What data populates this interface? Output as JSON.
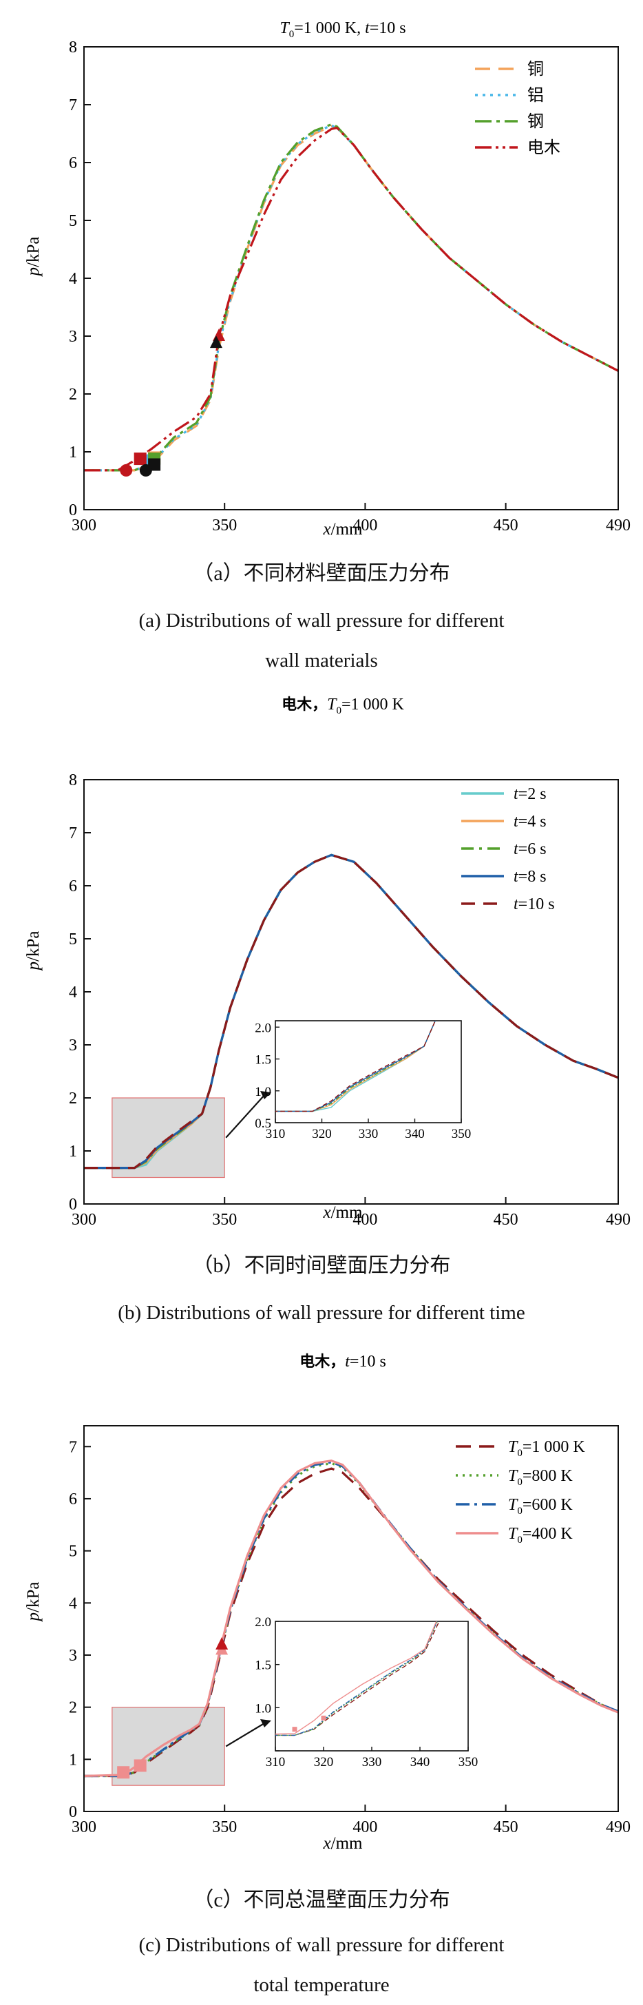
{
  "colors": {
    "copper": "#F4A35A",
    "aluminum": "#49B7E8",
    "steel": "#54A02C",
    "bakelite": "#C0161C",
    "t2": "#66CCCC",
    "t4": "#F4A35A",
    "t6": "#54A02C",
    "t8": "#1F5FA8",
    "t10": "#8B1A1A",
    "T1000": "#8B1A1A",
    "T800": "#54A02C",
    "T600": "#1F5FA8",
    "T400": "#EE8D8D",
    "shade": "#D9D9D9",
    "shade_border": "#E07070"
  },
  "figure": {
    "cap_a_cn": "（a）不同材料壁面压力分布",
    "cap_a_en_1": "(a) Distributions of wall pressure for different",
    "cap_a_en_2": "wall materials",
    "cap_b_cn": "（b）不同时间壁面压力分布",
    "cap_b_en": "(b) Distributions of wall pressure for different time",
    "cap_c_cn": "（c）不同总温壁面压力分布",
    "cap_c_en_1": "(c) Distributions of wall pressure for different",
    "cap_c_en_2": "total temperature"
  },
  "chart_data": [
    {
      "id": "a",
      "type": "line",
      "title": "T0=1 000 K, t=10 s",
      "xlabel": "x/mm",
      "ylabel": "p/kPa",
      "xlim": [
        300,
        490
      ],
      "ylim": [
        0,
        8
      ],
      "xticks": [
        300,
        350,
        400,
        450,
        490
      ],
      "yticks": [
        0,
        1,
        2,
        3,
        4,
        5,
        6,
        7,
        8
      ],
      "legend": "top-right",
      "series": [
        {
          "name": "铜",
          "color_key": "copper",
          "dash": "22,12",
          "x": [
            300,
            318,
            324,
            332,
            340,
            345,
            348,
            352,
            358,
            364,
            370,
            376,
            382,
            388,
            390,
            396,
            402,
            410,
            420,
            430,
            440,
            450,
            460,
            470,
            480,
            490
          ],
          "y": [
            0.68,
            0.68,
            0.78,
            1.2,
            1.45,
            1.9,
            2.8,
            3.6,
            4.5,
            5.3,
            5.95,
            6.3,
            6.5,
            6.63,
            6.6,
            6.3,
            5.9,
            5.4,
            4.85,
            4.35,
            3.95,
            3.55,
            3.2,
            2.9,
            2.65,
            2.4
          ]
        },
        {
          "name": "铝",
          "color_key": "aluminum",
          "dash": "4,7",
          "x": [
            300,
            318,
            324,
            332,
            340,
            345,
            348,
            352,
            358,
            364,
            370,
            376,
            382,
            388,
            390,
            396,
            402,
            410,
            420,
            430,
            440,
            450,
            460,
            470,
            480,
            490
          ],
          "y": [
            0.68,
            0.68,
            0.8,
            1.22,
            1.46,
            1.92,
            2.85,
            3.62,
            4.52,
            5.32,
            5.97,
            6.32,
            6.52,
            6.64,
            6.6,
            6.3,
            5.9,
            5.4,
            4.85,
            4.35,
            3.95,
            3.55,
            3.2,
            2.9,
            2.65,
            2.4
          ]
        },
        {
          "name": "钢",
          "color_key": "steel",
          "dash": "24,7,5,7",
          "x": [
            300,
            318,
            324,
            332,
            340,
            345,
            348,
            352,
            358,
            364,
            370,
            376,
            382,
            388,
            390,
            396,
            402,
            410,
            420,
            430,
            440,
            450,
            460,
            470,
            480,
            490
          ],
          "y": [
            0.68,
            0.68,
            0.82,
            1.25,
            1.5,
            1.95,
            2.9,
            3.7,
            4.55,
            5.35,
            6.0,
            6.35,
            6.55,
            6.66,
            6.62,
            6.3,
            5.9,
            5.4,
            4.85,
            4.35,
            3.95,
            3.55,
            3.2,
            2.9,
            2.65,
            2.4
          ]
        },
        {
          "name": "电木",
          "color_key": "bakelite",
          "dash": "24,6,4,6,4,6",
          "x": [
            300,
            312,
            318,
            324,
            332,
            340,
            345,
            348,
            352,
            358,
            364,
            370,
            376,
            382,
            388,
            390,
            396,
            402,
            410,
            420,
            430,
            440,
            450,
            460,
            470,
            480,
            490
          ],
          "y": [
            0.68,
            0.68,
            0.85,
            1.05,
            1.35,
            1.6,
            2.0,
            3.0,
            3.7,
            4.4,
            5.1,
            5.7,
            6.1,
            6.38,
            6.58,
            6.6,
            6.3,
            5.9,
            5.4,
            4.85,
            4.35,
            3.95,
            3.55,
            3.2,
            2.9,
            2.65,
            2.4
          ]
        }
      ],
      "markers": [
        {
          "shape": "square",
          "color_key": "copper",
          "x": 325,
          "y": 0.9
        },
        {
          "shape": "square",
          "color_key": "aluminum",
          "x": 324,
          "y": 0.85
        },
        {
          "shape": "square",
          "color_key": "steel",
          "x": 325,
          "y": 0.88
        },
        {
          "shape": "square",
          "color_key": "bakelite",
          "x": 320,
          "y": 0.88
        },
        {
          "shape": "square",
          "color": "#111111",
          "x": 325,
          "y": 0.78
        },
        {
          "shape": "circle",
          "color_key": "bakelite",
          "x": 315,
          "y": 0.68
        },
        {
          "shape": "circle",
          "color": "#111111",
          "x": 322,
          "y": 0.68
        },
        {
          "shape": "triangle",
          "color_key": "bakelite",
          "x": 348,
          "y": 3.0
        },
        {
          "shape": "triangle",
          "color": "#111111",
          "x": 347,
          "y": 2.88
        }
      ]
    },
    {
      "id": "b",
      "type": "line",
      "title": "电木，T0=1 000 K",
      "xlabel": "x/mm",
      "ylabel": "p/kPa",
      "xlim": [
        300,
        490
      ],
      "ylim": [
        0,
        8
      ],
      "xticks": [
        300,
        350,
        400,
        450,
        490
      ],
      "yticks": [
        0,
        1,
        2,
        3,
        4,
        5,
        6,
        7,
        8
      ],
      "legend": "top-right",
      "series": [
        {
          "name": "t=2 s",
          "color_key": "t2",
          "dash": "",
          "x": [
            300,
            318,
            322,
            326,
            332,
            338,
            342,
            345,
            348,
            352,
            358,
            364,
            370,
            376,
            382,
            388,
            396,
            404,
            414,
            424,
            434,
            444,
            454,
            464,
            474,
            482,
            490
          ],
          "y": [
            0.68,
            0.68,
            0.74,
            1.0,
            1.25,
            1.5,
            1.7,
            2.2,
            2.9,
            3.7,
            4.6,
            5.35,
            5.92,
            6.25,
            6.45,
            6.58,
            6.45,
            6.05,
            5.45,
            4.85,
            4.3,
            3.8,
            3.35,
            3.0,
            2.7,
            2.55,
            2.38
          ]
        },
        {
          "name": "t=4 s",
          "color_key": "t4",
          "dash": "",
          "x": [
            300,
            318,
            322,
            326,
            332,
            338,
            342,
            345,
            348,
            352,
            358,
            364,
            370,
            376,
            382,
            388,
            396,
            404,
            414,
            424,
            434,
            444,
            454,
            464,
            474,
            482,
            490
          ],
          "y": [
            0.68,
            0.68,
            0.78,
            1.02,
            1.27,
            1.5,
            1.7,
            2.2,
            2.9,
            3.7,
            4.6,
            5.35,
            5.92,
            6.25,
            6.45,
            6.58,
            6.45,
            6.05,
            5.45,
            4.85,
            4.3,
            3.8,
            3.35,
            3.0,
            2.7,
            2.55,
            2.38
          ]
        },
        {
          "name": "t=6 s",
          "color_key": "t6",
          "dash": "18,8,4,8",
          "x": [
            300,
            318,
            322,
            326,
            332,
            338,
            342,
            345,
            348,
            352,
            358,
            364,
            370,
            376,
            382,
            388,
            396,
            404,
            414,
            424,
            434,
            444,
            454,
            464,
            474,
            482,
            490
          ],
          "y": [
            0.68,
            0.68,
            0.8,
            1.04,
            1.28,
            1.52,
            1.7,
            2.2,
            2.9,
            3.7,
            4.6,
            5.35,
            5.92,
            6.25,
            6.45,
            6.58,
            6.45,
            6.05,
            5.45,
            4.85,
            4.3,
            3.8,
            3.35,
            3.0,
            2.7,
            2.55,
            2.38
          ]
        },
        {
          "name": "t=8 s",
          "color_key": "t8",
          "dash": "",
          "x": [
            300,
            318,
            322,
            326,
            332,
            338,
            342,
            345,
            348,
            352,
            358,
            364,
            370,
            376,
            382,
            388,
            396,
            404,
            414,
            424,
            434,
            444,
            454,
            464,
            474,
            482,
            490
          ],
          "y": [
            0.68,
            0.68,
            0.82,
            1.06,
            1.3,
            1.53,
            1.7,
            2.2,
            2.9,
            3.7,
            4.6,
            5.35,
            5.92,
            6.25,
            6.45,
            6.58,
            6.45,
            6.05,
            5.45,
            4.85,
            4.3,
            3.8,
            3.35,
            3.0,
            2.7,
            2.55,
            2.38
          ]
        },
        {
          "name": "t=10 s",
          "color_key": "t10",
          "dash": "20,12",
          "x": [
            300,
            318,
            322,
            326,
            332,
            338,
            342,
            345,
            348,
            352,
            358,
            364,
            370,
            376,
            382,
            388,
            396,
            404,
            414,
            424,
            434,
            444,
            454,
            464,
            474,
            482,
            490
          ],
          "y": [
            0.68,
            0.68,
            0.84,
            1.08,
            1.32,
            1.55,
            1.7,
            2.2,
            2.9,
            3.7,
            4.6,
            5.35,
            5.92,
            6.25,
            6.45,
            6.58,
            6.45,
            6.05,
            5.45,
            4.85,
            4.3,
            3.8,
            3.35,
            3.0,
            2.7,
            2.55,
            2.38
          ]
        }
      ],
      "zoom_box": {
        "x": [
          310,
          350
        ],
        "y": [
          0.5,
          2.0
        ]
      },
      "inset": {
        "xlim": [
          310,
          350
        ],
        "ylim": [
          0.5,
          2.1
        ],
        "xticks": [
          310,
          320,
          330,
          340,
          350
        ],
        "yticks": [
          0.5,
          1.0,
          1.5,
          2.0
        ],
        "ytick_labels": [
          "0.5",
          "1.0",
          "1.5",
          "2.0"
        ]
      }
    },
    {
      "id": "c",
      "type": "line",
      "title": "电木，t=10 s",
      "xlabel": "x/mm",
      "ylabel": "p/kPa",
      "xlim": [
        300,
        490
      ],
      "ylim": [
        0,
        7.4
      ],
      "xticks": [
        300,
        350,
        400,
        450,
        490
      ],
      "yticks": [
        0,
        1,
        2,
        3,
        4,
        5,
        6,
        7
      ],
      "legend": "top-right",
      "series": [
        {
          "name": "T0=1 000 K",
          "color_key": "T1000",
          "dash": "22,12",
          "x": [
            300,
            314,
            318,
            322,
            328,
            334,
            338,
            341,
            344,
            348,
            352,
            358,
            364,
            370,
            376,
            382,
            388,
            392,
            398,
            406,
            416,
            426,
            436,
            446,
            456,
            466,
            476,
            484,
            490
          ],
          "y": [
            0.68,
            0.68,
            0.75,
            0.92,
            1.15,
            1.38,
            1.52,
            1.65,
            2.0,
            2.9,
            3.8,
            4.75,
            5.5,
            6.0,
            6.3,
            6.48,
            6.58,
            6.5,
            6.2,
            5.7,
            5.05,
            4.45,
            3.95,
            3.45,
            3.0,
            2.62,
            2.3,
            2.05,
            1.9
          ]
        },
        {
          "name": "T0=800 K",
          "color_key": "T800",
          "dash": "3,7",
          "x": [
            300,
            314,
            318,
            322,
            328,
            334,
            338,
            341,
            344,
            348,
            352,
            358,
            364,
            370,
            376,
            382,
            388,
            392,
            398,
            406,
            416,
            426,
            436,
            446,
            456,
            466,
            476,
            484,
            490
          ],
          "y": [
            0.68,
            0.68,
            0.75,
            0.94,
            1.17,
            1.4,
            1.54,
            1.66,
            2.05,
            2.95,
            3.85,
            4.82,
            5.6,
            6.12,
            6.45,
            6.62,
            6.68,
            6.6,
            6.28,
            5.72,
            5.05,
            4.42,
            3.9,
            3.4,
            2.95,
            2.58,
            2.27,
            2.05,
            1.92
          ]
        },
        {
          "name": "T0=600 K",
          "color_key": "T600",
          "dash": "20,7,4,7",
          "x": [
            300,
            314,
            318,
            322,
            328,
            334,
            338,
            341,
            344,
            348,
            352,
            358,
            364,
            370,
            376,
            382,
            388,
            392,
            398,
            406,
            416,
            426,
            436,
            446,
            456,
            466,
            476,
            484,
            490
          ],
          "y": [
            0.68,
            0.68,
            0.76,
            0.95,
            1.18,
            1.41,
            1.55,
            1.67,
            2.06,
            2.96,
            3.86,
            4.84,
            5.62,
            6.15,
            6.48,
            6.65,
            6.7,
            6.62,
            6.3,
            5.73,
            5.05,
            4.42,
            3.9,
            3.4,
            2.95,
            2.58,
            2.27,
            2.05,
            1.92
          ]
        },
        {
          "name": "T0=400 K",
          "color_key": "T400",
          "dash": "",
          "x": [
            300,
            314,
            318,
            322,
            328,
            334,
            338,
            341,
            344,
            348,
            352,
            358,
            364,
            370,
            376,
            382,
            388,
            392,
            398,
            406,
            416,
            426,
            436,
            446,
            456,
            466,
            476,
            484,
            490
          ],
          "y": [
            0.68,
            0.7,
            0.85,
            1.05,
            1.27,
            1.46,
            1.57,
            1.68,
            2.08,
            3.0,
            3.9,
            4.9,
            5.68,
            6.2,
            6.52,
            6.68,
            6.73,
            6.65,
            6.3,
            5.72,
            5.02,
            4.4,
            3.88,
            3.38,
            2.93,
            2.56,
            2.25,
            2.03,
            1.9
          ]
        }
      ],
      "markers": [
        {
          "shape": "square",
          "color_key": "T400",
          "x": 314,
          "y": 0.75
        },
        {
          "shape": "square",
          "color_key": "T400",
          "x": 320,
          "y": 0.88
        },
        {
          "shape": "triangle",
          "color_key": "T400",
          "x": 349,
          "y": 3.1
        },
        {
          "shape": "triangle",
          "color": "#C0161C",
          "x": 349,
          "y": 3.2
        }
      ],
      "zoom_box": {
        "x": [
          310,
          350
        ],
        "y": [
          0.5,
          2.0
        ]
      },
      "inset": {
        "xlim": [
          310,
          350
        ],
        "ylim": [
          0.5,
          2.0
        ],
        "xticks": [
          310,
          320,
          330,
          340,
          350
        ],
        "yticks": [
          0.5,
          1.0,
          1.5,
          2.0
        ],
        "ytick_labels": [
          "",
          "1.0",
          "1.5",
          "2.0"
        ]
      }
    }
  ]
}
